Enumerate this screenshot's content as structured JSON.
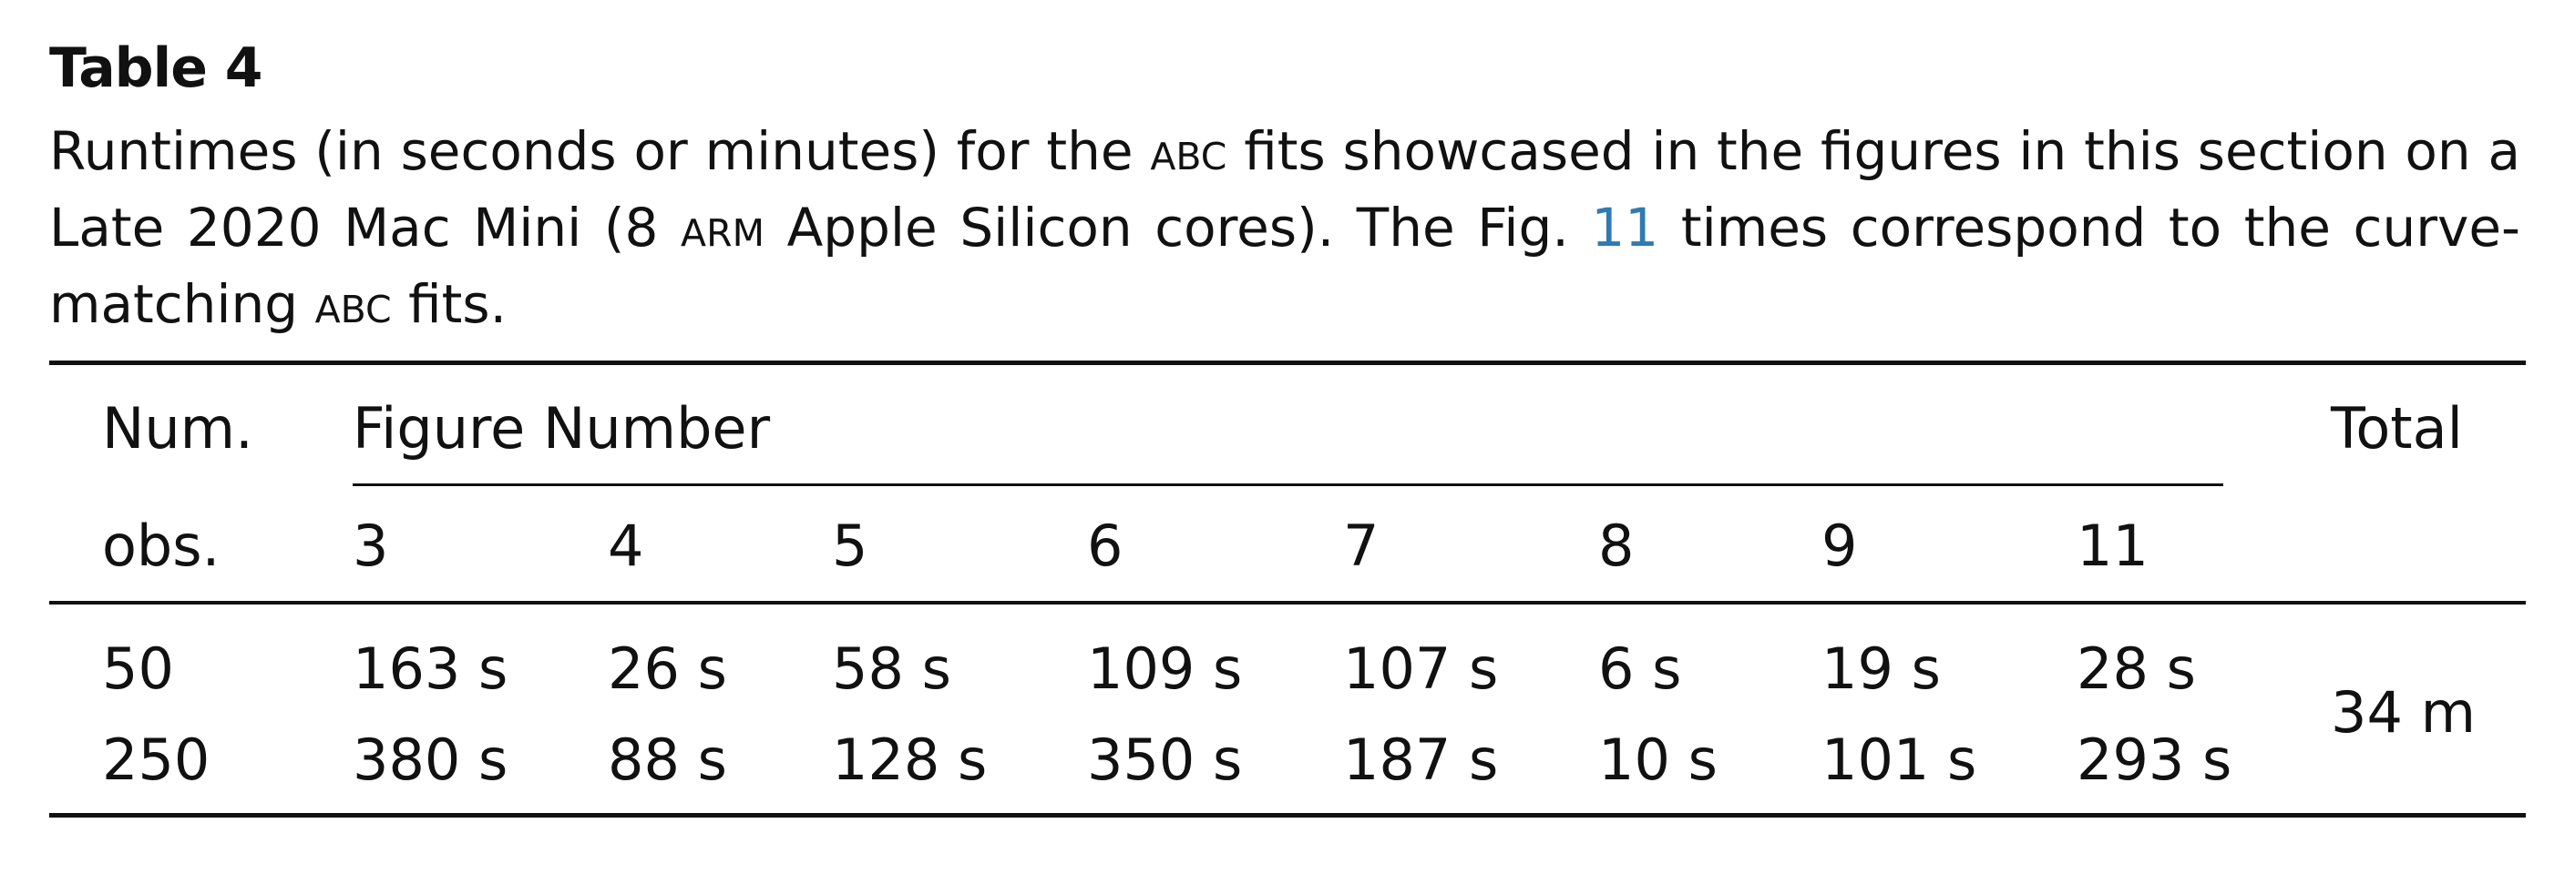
{
  "table": {
    "label": "Table 4",
    "caption": {
      "p1": "Runtimes (in seconds or minutes) for the ",
      "abc1": "abc",
      "p2": " fits showcased in the figures in this section on a Late 2020 Mac Mini (8 ",
      "arm": "arm",
      "p3": " Apple Silicon cores). The Fig. ",
      "fig_ref": "11",
      "p4": " times correspond to the curve-matching ",
      "abc2": "abc",
      "p5": " fits."
    },
    "header": {
      "num": "Num.",
      "obs": "obs.",
      "figure_number": "Figure Number",
      "total": "Total",
      "figures": [
        "3",
        "4",
        "5",
        "6",
        "7",
        "8",
        "9",
        "11"
      ]
    },
    "rows": [
      {
        "obs": "50",
        "cells": [
          "163 s",
          "26 s",
          "58 s",
          "109 s",
          "107 s",
          "6 s",
          "19 s",
          "28 s"
        ]
      },
      {
        "obs": "250",
        "cells": [
          "380 s",
          "88 s",
          "128 s",
          "350 s",
          "187 s",
          "10 s",
          "101 s",
          "293 s"
        ]
      }
    ],
    "total": "34 m"
  },
  "colors": {
    "text": "#111111",
    "link": "#2f7bb1"
  }
}
